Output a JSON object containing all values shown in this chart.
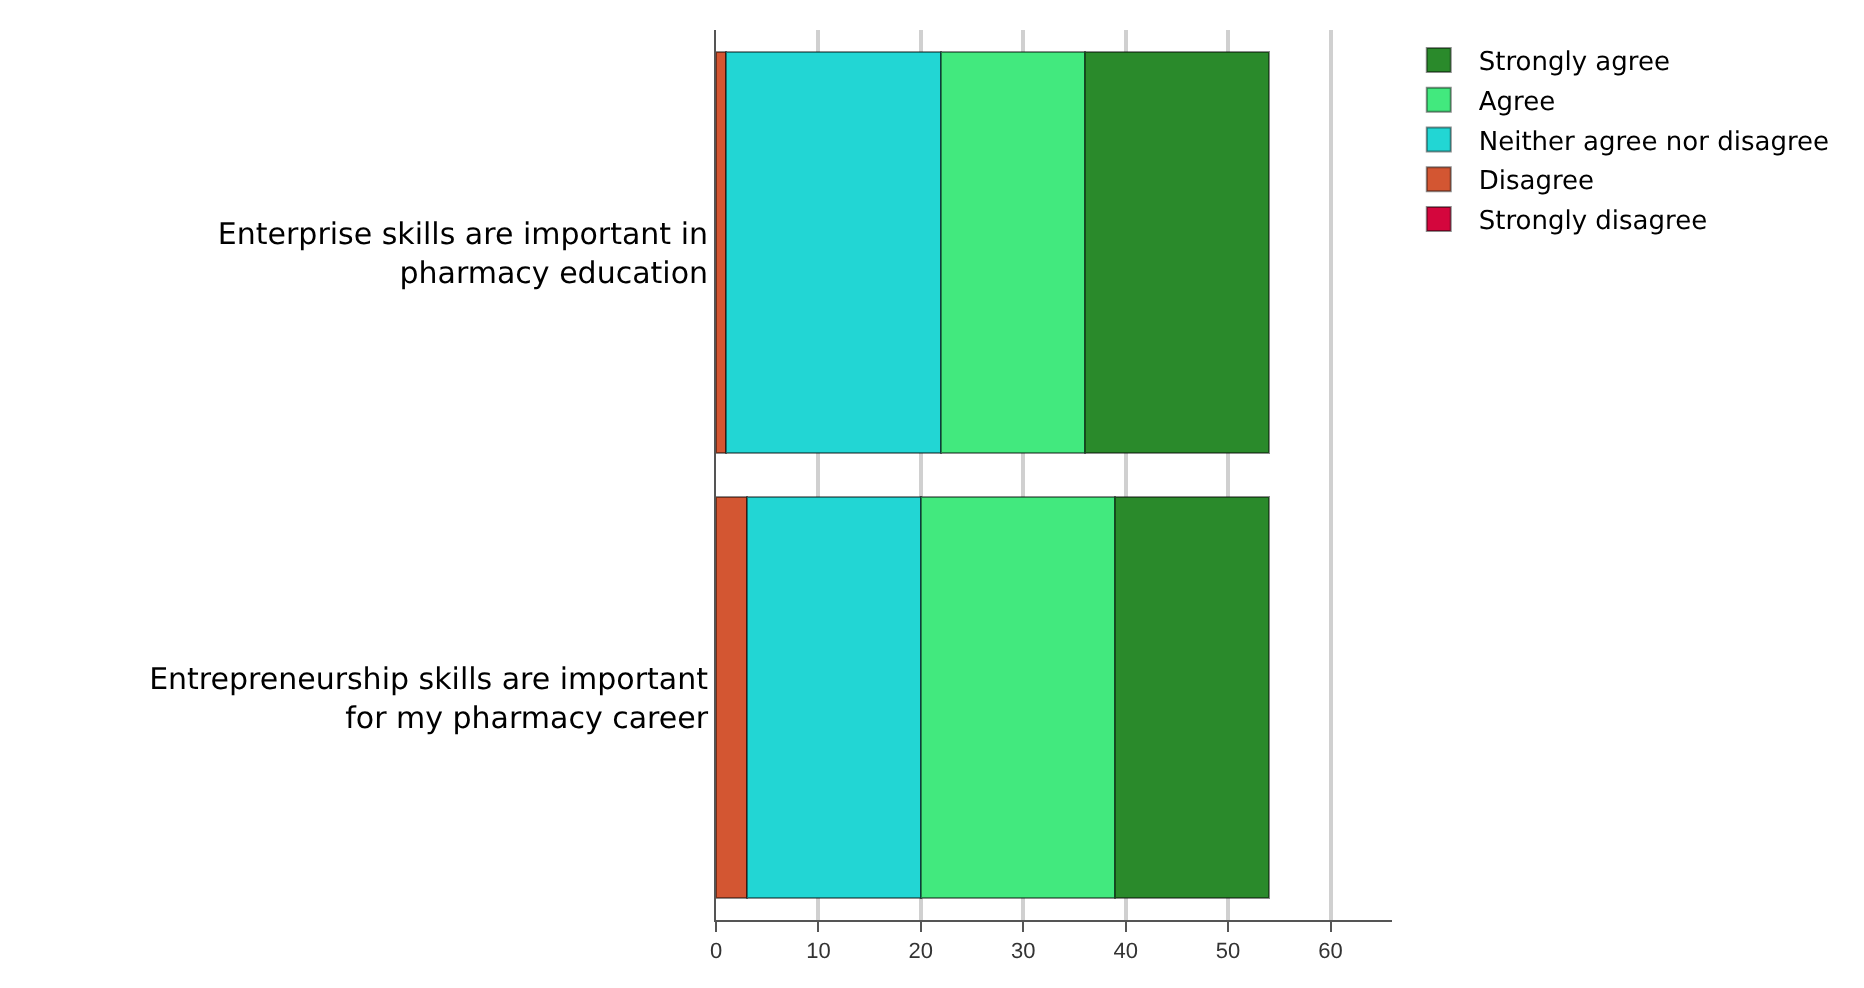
{
  "chart_data": {
    "type": "bar",
    "orientation": "horizontal",
    "stacked": true,
    "categories": [
      "Enterprise skills are important in pharmacy education",
      "Entrepreneurship skills are important for my pharmacy career"
    ],
    "series": [
      {
        "name": "Strongly disagree",
        "color": "#d4063d",
        "values": [
          0,
          0
        ]
      },
      {
        "name": "Disagree",
        "color": "#d35632",
        "values": [
          1,
          3
        ]
      },
      {
        "name": "Neither agree nor disagree",
        "color": "#22d6d4",
        "values": [
          21,
          17
        ]
      },
      {
        "name": "Agree",
        "color": "#42e97e",
        "values": [
          14,
          19
        ]
      },
      {
        "name": "Strongly agree",
        "color": "#2a8a2b",
        "values": [
          18,
          15
        ]
      }
    ],
    "xlim": [
      0,
      66
    ],
    "xticks": [
      0,
      10,
      20,
      30,
      40,
      50,
      60
    ],
    "grid": "x",
    "legend": "top right"
  }
}
